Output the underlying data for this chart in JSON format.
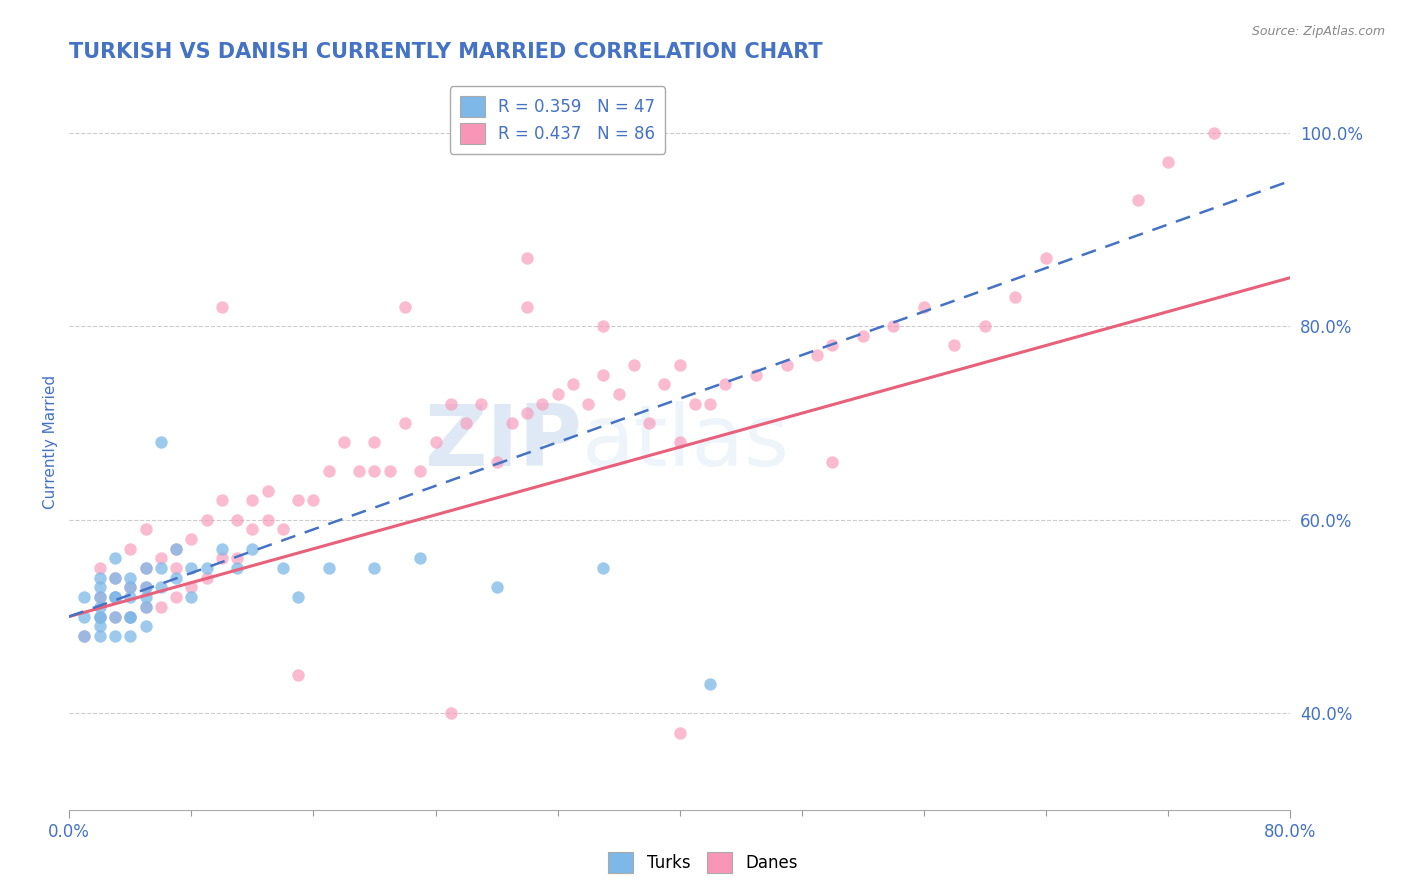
{
  "title": "TURKISH VS DANISH CURRENTLY MARRIED CORRELATION CHART",
  "source": "Source: ZipAtlas.com",
  "ylabel": "Currently Married",
  "y_tick_labels": [
    "40.0%",
    "60.0%",
    "80.0%",
    "100.0%"
  ],
  "y_tick_values": [
    0.4,
    0.6,
    0.8,
    1.0
  ],
  "x_lim": [
    0.0,
    0.8
  ],
  "y_lim": [
    0.3,
    1.06
  ],
  "watermark_zip": "ZIP",
  "watermark_atlas": "atlas",
  "blue_color": "#7db8e8",
  "pink_color": "#f896b8",
  "blue_line_color": "#4472c4",
  "pink_line_color": "#e8607a",
  "title_color": "#4472c4",
  "axis_label_color": "#4472c4",
  "tick_label_color": "#4472c4",
  "legend_blue_label": "R = 0.359   N = 47",
  "legend_pink_label": "R = 0.437   N = 86",
  "turks_x": [
    0.01,
    0.01,
    0.01,
    0.02,
    0.02,
    0.02,
    0.02,
    0.02,
    0.02,
    0.02,
    0.02,
    0.03,
    0.03,
    0.03,
    0.03,
    0.03,
    0.03,
    0.04,
    0.04,
    0.04,
    0.04,
    0.04,
    0.04,
    0.05,
    0.05,
    0.05,
    0.05,
    0.05,
    0.06,
    0.06,
    0.06,
    0.07,
    0.07,
    0.08,
    0.08,
    0.09,
    0.1,
    0.11,
    0.12,
    0.14,
    0.15,
    0.17,
    0.2,
    0.23,
    0.28,
    0.35,
    0.42
  ],
  "turks_y": [
    0.5,
    0.52,
    0.48,
    0.51,
    0.53,
    0.49,
    0.5,
    0.52,
    0.54,
    0.48,
    0.5,
    0.52,
    0.54,
    0.5,
    0.48,
    0.52,
    0.56,
    0.5,
    0.52,
    0.54,
    0.5,
    0.48,
    0.53,
    0.51,
    0.53,
    0.55,
    0.49,
    0.52,
    0.53,
    0.55,
    0.68,
    0.54,
    0.57,
    0.55,
    0.52,
    0.55,
    0.57,
    0.55,
    0.57,
    0.55,
    0.52,
    0.55,
    0.55,
    0.56,
    0.53,
    0.55,
    0.43
  ],
  "danes_x": [
    0.01,
    0.02,
    0.02,
    0.02,
    0.03,
    0.03,
    0.03,
    0.04,
    0.04,
    0.04,
    0.05,
    0.05,
    0.05,
    0.05,
    0.06,
    0.06,
    0.07,
    0.07,
    0.07,
    0.08,
    0.08,
    0.09,
    0.09,
    0.1,
    0.1,
    0.11,
    0.11,
    0.12,
    0.12,
    0.13,
    0.13,
    0.14,
    0.15,
    0.16,
    0.17,
    0.18,
    0.19,
    0.2,
    0.21,
    0.22,
    0.23,
    0.24,
    0.25,
    0.26,
    0.27,
    0.28,
    0.29,
    0.3,
    0.31,
    0.32,
    0.33,
    0.34,
    0.35,
    0.36,
    0.37,
    0.38,
    0.39,
    0.4,
    0.41,
    0.42,
    0.43,
    0.45,
    0.47,
    0.49,
    0.5,
    0.52,
    0.54,
    0.56,
    0.58,
    0.6,
    0.62,
    0.64,
    0.22,
    0.3,
    0.35,
    0.4,
    0.5,
    0.1,
    0.2,
    0.3,
    0.4,
    0.15,
    0.25,
    0.7,
    0.72,
    0.75
  ],
  "danes_y": [
    0.48,
    0.5,
    0.52,
    0.55,
    0.5,
    0.52,
    0.54,
    0.5,
    0.53,
    0.57,
    0.51,
    0.53,
    0.55,
    0.59,
    0.51,
    0.56,
    0.52,
    0.55,
    0.57,
    0.53,
    0.58,
    0.54,
    0.6,
    0.56,
    0.62,
    0.56,
    0.6,
    0.59,
    0.62,
    0.6,
    0.63,
    0.59,
    0.62,
    0.62,
    0.65,
    0.68,
    0.65,
    0.68,
    0.65,
    0.7,
    0.65,
    0.68,
    0.72,
    0.7,
    0.72,
    0.66,
    0.7,
    0.71,
    0.72,
    0.73,
    0.74,
    0.72,
    0.75,
    0.73,
    0.76,
    0.7,
    0.74,
    0.68,
    0.72,
    0.72,
    0.74,
    0.75,
    0.76,
    0.77,
    0.78,
    0.79,
    0.8,
    0.82,
    0.78,
    0.8,
    0.83,
    0.87,
    0.82,
    0.87,
    0.8,
    0.76,
    0.66,
    0.82,
    0.65,
    0.82,
    0.38,
    0.44,
    0.4,
    0.93,
    0.97,
    1.0
  ]
}
